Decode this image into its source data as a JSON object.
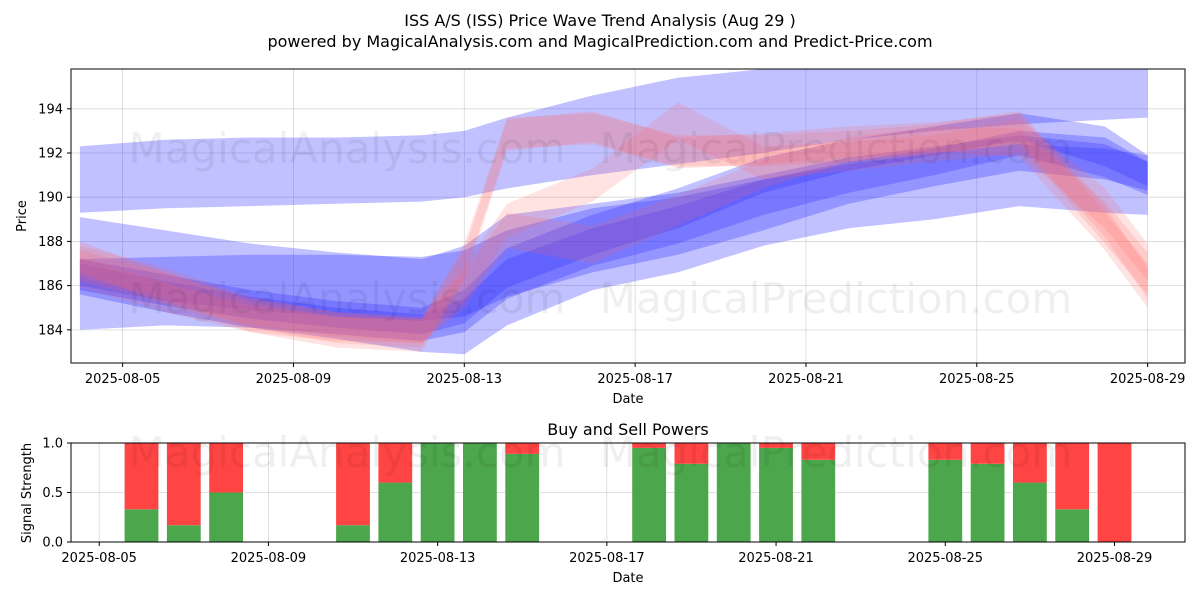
{
  "title": "ISS A/S (ISS) Price Wave Trend Analysis (Aug 29 )",
  "subtitle": "powered by MagicalAnalysis.com and MagicalPrediction.com and Predict-Price.com",
  "watermarks": [
    "MagicalAnalysis.com",
    "MagicalPrediction.com"
  ],
  "colors": {
    "buy": "#4ca64c",
    "sell": "#ff4444",
    "band_blue": "#3333ff",
    "band_red": "#ff6666"
  },
  "chart_data": [
    {
      "type": "area",
      "xlabel": "Date",
      "ylabel": "Price",
      "x_ticks": [
        "2025-08-05",
        "2025-08-09",
        "2025-08-13",
        "2025-08-17",
        "2025-08-21",
        "2025-08-25",
        "2025-08-29"
      ],
      "y_ticks": [
        184,
        186,
        188,
        190,
        192,
        194
      ],
      "xlim": [
        "2025-08-03T19:00",
        "2025-08-29T21:00"
      ],
      "ylim": [
        182.5,
        195.8
      ],
      "grid": true,
      "dates": [
        "2025-08-04",
        "2025-08-06",
        "2025-08-08",
        "2025-08-10",
        "2025-08-12",
        "2025-08-13",
        "2025-08-14",
        "2025-08-16",
        "2025-08-18",
        "2025-08-20",
        "2025-08-22",
        "2025-08-24",
        "2025-08-26",
        "2025-08-28",
        "2025-08-29"
      ],
      "series": [
        {
          "color": "blue",
          "upper": [
            192.3,
            192.6,
            192.7,
            192.7,
            192.8,
            193.0,
            193.6,
            194.6,
            195.4,
            195.8,
            196.0,
            196.0,
            196.0,
            196.0,
            196.0
          ],
          "lower": [
            189.3,
            189.5,
            189.6,
            189.7,
            189.8,
            190.0,
            190.4,
            191.0,
            191.5,
            192.0,
            192.6,
            193.0,
            193.3,
            193.5,
            193.6
          ]
        },
        {
          "color": "blue",
          "upper": [
            187.2,
            187.3,
            187.4,
            187.4,
            187.3,
            187.6,
            188.5,
            189.5,
            190.0,
            190.8,
            191.5,
            192.0,
            192.4,
            192.2,
            191.9
          ],
          "lower": [
            186.0,
            185.3,
            184.9,
            184.6,
            184.4,
            184.6,
            185.5,
            186.6,
            187.4,
            188.5,
            189.7,
            190.5,
            191.2,
            190.8,
            190.3
          ]
        },
        {
          "color": "blue",
          "upper": [
            189.1,
            188.5,
            187.9,
            187.5,
            187.2,
            187.8,
            189.2,
            189.7,
            190.2,
            191.0,
            191.8,
            192.3,
            192.8,
            192.4,
            191.6
          ],
          "lower": [
            184.0,
            184.2,
            184.1,
            183.6,
            183.0,
            182.9,
            184.2,
            185.8,
            186.6,
            187.8,
            188.6,
            189.0,
            189.6,
            189.3,
            189.2
          ]
        },
        {
          "color": "blue",
          "upper": [
            187.0,
            186.2,
            185.5,
            185.0,
            184.7,
            185.4,
            187.2,
            188.6,
            189.6,
            190.8,
            191.6,
            192.2,
            193.0,
            192.7,
            191.6
          ],
          "lower": [
            185.6,
            184.8,
            184.1,
            183.8,
            183.5,
            183.9,
            185.4,
            186.9,
            187.9,
            189.2,
            190.2,
            191.0,
            191.9,
            190.9,
            190.1
          ]
        },
        {
          "color": "blue",
          "upper": [
            187.2,
            186.5,
            185.8,
            185.3,
            185.0,
            185.8,
            187.7,
            189.2,
            190.4,
            191.8,
            192.6,
            193.2,
            193.8,
            193.2,
            191.9
          ],
          "lower": [
            185.8,
            185.1,
            184.5,
            184.1,
            183.8,
            184.3,
            185.9,
            187.4,
            188.6,
            190.2,
            191.2,
            191.9,
            192.6,
            191.4,
            190.5
          ]
        },
        {
          "color": "red",
          "upper": [
            188.0,
            186.6,
            185.4,
            184.8,
            184.5,
            186.6,
            189.3,
            188.7,
            190.1,
            191.7,
            192.7,
            193.2,
            193.1,
            189.8,
            187.5
          ],
          "lower": [
            186.6,
            185.2,
            184.2,
            183.7,
            183.4,
            185.0,
            187.7,
            187.0,
            188.7,
            190.4,
            191.6,
            192.1,
            191.8,
            187.6,
            185.0
          ]
        },
        {
          "color": "red",
          "upper": [
            187.6,
            186.6,
            185.3,
            184.6,
            184.4,
            187.9,
            193.6,
            193.8,
            192.8,
            192.8,
            193.0,
            193.3,
            193.9,
            189.6,
            186.8
          ]
        },
        {
          "color": "red",
          "lower": [
            186.4,
            185.4,
            184.1,
            183.4,
            183.2,
            186.2,
            192.1,
            192.5,
            191.3,
            191.5,
            191.8,
            192.0,
            192.4,
            187.9,
            185.6
          ]
        },
        {
          "color": "red",
          "upper": [
            187.3,
            186.1,
            185.1,
            184.6,
            184.5,
            186.9,
            189.7,
            191.3,
            194.3,
            192.3,
            192.5,
            192.8,
            193.5,
            190.4,
            187.9
          ],
          "lower": [
            185.9,
            184.8,
            183.9,
            183.5,
            183.4,
            185.3,
            188.2,
            189.8,
            192.6,
            190.8,
            191.2,
            191.6,
            192.0,
            188.6,
            186.2
          ]
        }
      ]
    },
    {
      "type": "bar",
      "title": "Buy and Sell Powers",
      "xlabel": "Date",
      "ylabel": "Signal Strength",
      "x_ticks": [
        "2025-08-05",
        "2025-08-09",
        "2025-08-13",
        "2025-08-17",
        "2025-08-21",
        "2025-08-25",
        "2025-08-29"
      ],
      "y_ticks": [
        "0.0",
        "0.5",
        "1.0"
      ],
      "xlim": [
        "2025-08-04T08:00",
        "2025-08-30T16:00"
      ],
      "ylim": [
        0,
        1
      ],
      "categories": [
        "2025-08-06",
        "2025-08-07",
        "2025-08-08",
        "2025-08-11",
        "2025-08-12",
        "2025-08-13",
        "2025-08-14",
        "2025-08-15",
        "2025-08-18",
        "2025-08-19",
        "2025-08-20",
        "2025-08-21",
        "2025-08-22",
        "2025-08-25",
        "2025-08-26",
        "2025-08-27",
        "2025-08-28",
        "2025-08-29"
      ],
      "series": [
        {
          "name": "Buy",
          "values": [
            0.33,
            0.17,
            0.5,
            0.17,
            0.6,
            1.0,
            1.0,
            0.89,
            0.95,
            0.79,
            1.0,
            0.95,
            0.83,
            0.83,
            0.79,
            0.6,
            0.33,
            0.0
          ]
        },
        {
          "name": "Sell",
          "values": [
            0.67,
            0.83,
            0.5,
            0.83,
            0.4,
            0.0,
            0.0,
            0.11,
            0.05,
            0.21,
            0.0,
            0.05,
            0.17,
            0.17,
            0.21,
            0.4,
            0.67,
            1.0
          ]
        }
      ]
    }
  ]
}
